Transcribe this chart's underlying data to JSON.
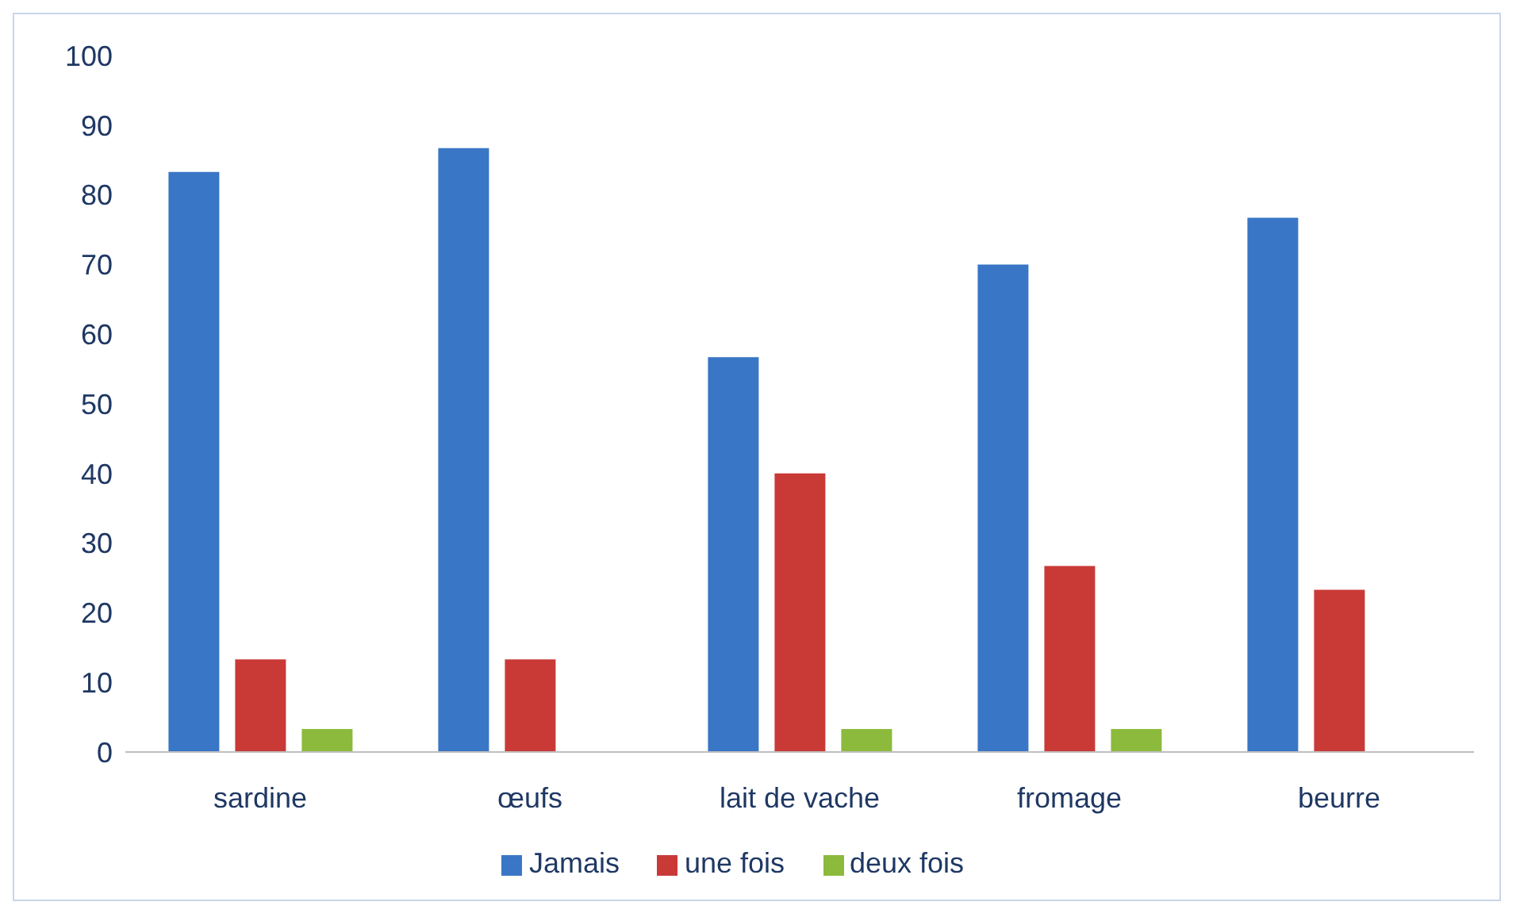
{
  "chart_data": {
    "type": "bar",
    "categories": [
      "sardine",
      "œufs",
      "lait de vache",
      "fromage",
      "beurre"
    ],
    "series": [
      {
        "name": "Jamais",
        "color": "#3a76c6",
        "values": [
          83.3,
          86.7,
          56.7,
          70,
          76.7
        ]
      },
      {
        "name": "une fois",
        "color": "#c93a37",
        "values": [
          13.3,
          13.3,
          40,
          26.7,
          23.3
        ]
      },
      {
        "name": "deux fois",
        "color": "#8cba3c",
        "values": [
          3.3,
          null,
          3.3,
          3.3,
          null
        ]
      }
    ],
    "ylim": [
      0,
      100
    ],
    "yticks": [
      0,
      10,
      20,
      30,
      40,
      50,
      60,
      70,
      80,
      90,
      100
    ],
    "grid": false,
    "legend": "bottom"
  }
}
